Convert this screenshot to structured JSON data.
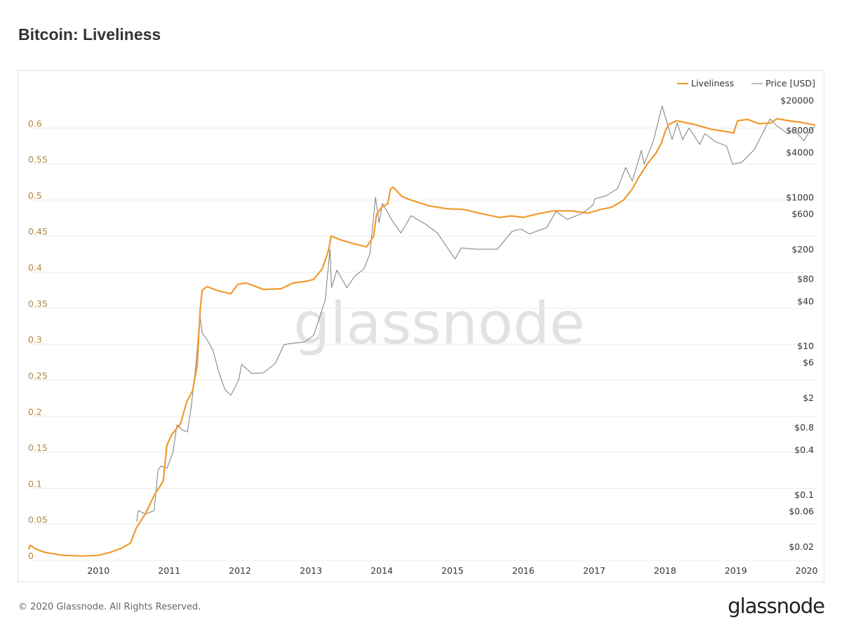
{
  "title": "Bitcoin: Liveliness",
  "footer": "© 2020 Glassnode. All Rights Reserved.",
  "logo": "glassnode",
  "watermark": "glassnode",
  "colors": {
    "liveliness": "#f09a2e",
    "price": "#7d7d7d",
    "left_axis": "#b5873f",
    "grid": "#ececec"
  },
  "chart_data": {
    "type": "line",
    "title": "Bitcoin: Liveliness",
    "legend": [
      "Liveliness",
      "Price [USD]"
    ],
    "legend_position": "top-right",
    "grid": true,
    "x_range": [
      "2009-01-03",
      "2020-02-15"
    ],
    "x_ticks": [
      "2010",
      "2011",
      "2012",
      "2013",
      "2014",
      "2015",
      "2016",
      "2017",
      "2018",
      "2019",
      "2020"
    ],
    "y_left": {
      "range": [
        0,
        0.65
      ],
      "scale": "linear",
      "ticks": [
        "0",
        "0.05",
        "0.1",
        "0.15",
        "0.2",
        "0.25",
        "0.3",
        "0.35",
        "0.4",
        "0.45",
        "0.5",
        "0.55",
        "0.6"
      ]
    },
    "y_right": {
      "range": [
        0.015,
        30000
      ],
      "scale": "log",
      "ticks": [
        "$0.02",
        "$0.06",
        "$0.1",
        "$0.4",
        "$0.8",
        "$2",
        "$6",
        "$10",
        "$40",
        "$80",
        "$200",
        "$600",
        "$1000",
        "$4000",
        "$8000",
        "$20000"
      ],
      "tick_values": [
        0.02,
        0.06,
        0.1,
        0.4,
        0.8,
        2,
        6,
        10,
        40,
        80,
        200,
        600,
        1000,
        4000,
        8000,
        20000
      ]
    },
    "series": [
      {
        "name": "Liveliness",
        "axis": "left",
        "points": [
          [
            "2009-01-05",
            0.015
          ],
          [
            "2009-01-15",
            0.021
          ],
          [
            "2009-02-10",
            0.016
          ],
          [
            "2009-04-01",
            0.011
          ],
          [
            "2009-07-01",
            0.007
          ],
          [
            "2009-10-01",
            0.006
          ],
          [
            "2010-01-01",
            0.007
          ],
          [
            "2010-03-01",
            0.011
          ],
          [
            "2010-05-01",
            0.017
          ],
          [
            "2010-06-15",
            0.024
          ],
          [
            "2010-07-15",
            0.045
          ],
          [
            "2010-09-01",
            0.065
          ],
          [
            "2010-10-15",
            0.09
          ],
          [
            "2010-12-01",
            0.11
          ],
          [
            "2010-12-20",
            0.16
          ],
          [
            "2011-01-15",
            0.175
          ],
          [
            "2011-03-01",
            0.19
          ],
          [
            "2011-04-01",
            0.22
          ],
          [
            "2011-05-01",
            0.235
          ],
          [
            "2011-05-25",
            0.27
          ],
          [
            "2011-06-10",
            0.35
          ],
          [
            "2011-06-20",
            0.375
          ],
          [
            "2011-07-15",
            0.38
          ],
          [
            "2011-09-01",
            0.375
          ],
          [
            "2011-10-15",
            0.372
          ],
          [
            "2011-11-15",
            0.37
          ],
          [
            "2011-12-20",
            0.383
          ],
          [
            "2012-02-01",
            0.385
          ],
          [
            "2012-05-01",
            0.376
          ],
          [
            "2012-08-01",
            0.377
          ],
          [
            "2012-10-01",
            0.385
          ],
          [
            "2012-12-01",
            0.387
          ],
          [
            "2013-01-15",
            0.39
          ],
          [
            "2013-03-01",
            0.405
          ],
          [
            "2013-04-01",
            0.43
          ],
          [
            "2013-04-15",
            0.45
          ],
          [
            "2013-06-01",
            0.445
          ],
          [
            "2013-08-01",
            0.44
          ],
          [
            "2013-10-15",
            0.435
          ],
          [
            "2013-11-20",
            0.45
          ],
          [
            "2013-12-05",
            0.48
          ],
          [
            "2014-01-01",
            0.49
          ],
          [
            "2014-02-01",
            0.495
          ],
          [
            "2014-02-15",
            0.515
          ],
          [
            "2014-03-01",
            0.518
          ],
          [
            "2014-04-15",
            0.505
          ],
          [
            "2014-06-01",
            0.5
          ],
          [
            "2014-09-01",
            0.492
          ],
          [
            "2014-12-01",
            0.488
          ],
          [
            "2015-03-01",
            0.487
          ],
          [
            "2015-06-01",
            0.481
          ],
          [
            "2015-09-01",
            0.476
          ],
          [
            "2015-11-01",
            0.478
          ],
          [
            "2016-01-01",
            0.476
          ],
          [
            "2016-03-01",
            0.48
          ],
          [
            "2016-06-01",
            0.485
          ],
          [
            "2016-09-01",
            0.485
          ],
          [
            "2016-12-01",
            0.482
          ],
          [
            "2017-02-01",
            0.487
          ],
          [
            "2017-04-01",
            0.49
          ],
          [
            "2017-06-01",
            0.5
          ],
          [
            "2017-07-15",
            0.515
          ],
          [
            "2017-08-15",
            0.53
          ],
          [
            "2017-10-01",
            0.55
          ],
          [
            "2017-11-15",
            0.565
          ],
          [
            "2017-12-15",
            0.58
          ],
          [
            "2018-01-01",
            0.595
          ],
          [
            "2018-01-20",
            0.605
          ],
          [
            "2018-03-01",
            0.61
          ],
          [
            "2018-06-01",
            0.605
          ],
          [
            "2018-09-01",
            0.598
          ],
          [
            "2018-11-15",
            0.595
          ],
          [
            "2018-12-20",
            0.593
          ],
          [
            "2019-01-10",
            0.61
          ],
          [
            "2019-03-01",
            0.612
          ],
          [
            "2019-05-01",
            0.606
          ],
          [
            "2019-07-01",
            0.607
          ],
          [
            "2019-08-01",
            0.613
          ],
          [
            "2019-10-01",
            0.61
          ],
          [
            "2019-12-01",
            0.608
          ],
          [
            "2020-02-15",
            0.604
          ]
        ]
      },
      {
        "name": "Price [USD]",
        "axis": "right",
        "points": [
          [
            "2010-07-17",
            0.05
          ],
          [
            "2010-07-25",
            0.07
          ],
          [
            "2010-09-01",
            0.063
          ],
          [
            "2010-10-15",
            0.07
          ],
          [
            "2010-11-05",
            0.25
          ],
          [
            "2010-11-20",
            0.28
          ],
          [
            "2010-12-20",
            0.26
          ],
          [
            "2011-01-20",
            0.42
          ],
          [
            "2011-02-10",
            1.0
          ],
          [
            "2011-03-10",
            0.85
          ],
          [
            "2011-04-05",
            0.8
          ],
          [
            "2011-04-25",
            1.8
          ],
          [
            "2011-05-20",
            7.0
          ],
          [
            "2011-06-08",
            30
          ],
          [
            "2011-06-20",
            17
          ],
          [
            "2011-07-15",
            14
          ],
          [
            "2011-08-15",
            10
          ],
          [
            "2011-09-15",
            5
          ],
          [
            "2011-10-15",
            3
          ],
          [
            "2011-11-15",
            2.5
          ],
          [
            "2011-12-25",
            4
          ],
          [
            "2012-01-10",
            6.5
          ],
          [
            "2012-03-01",
            4.9
          ],
          [
            "2012-05-01",
            5
          ],
          [
            "2012-07-01",
            6.7
          ],
          [
            "2012-08-15",
            12
          ],
          [
            "2012-10-01",
            12.5
          ],
          [
            "2012-12-01",
            13
          ],
          [
            "2013-01-15",
            16
          ],
          [
            "2013-02-15",
            28
          ],
          [
            "2013-03-15",
            47
          ],
          [
            "2013-04-09",
            230
          ],
          [
            "2013-04-17",
            70
          ],
          [
            "2013-05-15",
            120
          ],
          [
            "2013-07-05",
            70
          ],
          [
            "2013-08-15",
            100
          ],
          [
            "2013-10-01",
            125
          ],
          [
            "2013-11-01",
            200
          ],
          [
            "2013-11-30",
            1150
          ],
          [
            "2013-12-18",
            520
          ],
          [
            "2014-01-05",
            950
          ],
          [
            "2014-02-25",
            550
          ],
          [
            "2014-04-10",
            380
          ],
          [
            "2014-06-01",
            650
          ],
          [
            "2014-08-15",
            500
          ],
          [
            "2014-10-15",
            380
          ],
          [
            "2015-01-14",
            170
          ],
          [
            "2015-02-15",
            240
          ],
          [
            "2015-05-01",
            230
          ],
          [
            "2015-08-20",
            230
          ],
          [
            "2015-11-04",
            400
          ],
          [
            "2015-12-20",
            430
          ],
          [
            "2016-02-01",
            370
          ],
          [
            "2016-05-01",
            450
          ],
          [
            "2016-06-17",
            740
          ],
          [
            "2016-08-15",
            580
          ],
          [
            "2016-11-01",
            700
          ],
          [
            "2016-12-25",
            900
          ],
          [
            "2017-01-05",
            1100
          ],
          [
            "2017-03-01",
            1200
          ],
          [
            "2017-05-01",
            1500
          ],
          [
            "2017-06-12",
            2900
          ],
          [
            "2017-07-16",
            1900
          ],
          [
            "2017-09-01",
            4900
          ],
          [
            "2017-09-15",
            3200
          ],
          [
            "2017-11-01",
            6500
          ],
          [
            "2017-12-17",
            19500
          ],
          [
            "2018-02-06",
            6900
          ],
          [
            "2018-03-05",
            11500
          ],
          [
            "2018-04-01",
            6900
          ],
          [
            "2018-05-05",
            9800
          ],
          [
            "2018-06-29",
            5900
          ],
          [
            "2018-07-25",
            8300
          ],
          [
            "2018-09-15",
            6500
          ],
          [
            "2018-11-15",
            5600
          ],
          [
            "2018-12-15",
            3200
          ],
          [
            "2019-02-01",
            3400
          ],
          [
            "2019-04-05",
            5000
          ],
          [
            "2019-06-26",
            13000
          ],
          [
            "2019-08-01",
            10500
          ],
          [
            "2019-09-25",
            8300
          ],
          [
            "2019-10-26",
            9500
          ],
          [
            "2019-12-18",
            6600
          ],
          [
            "2020-01-15",
            8800
          ],
          [
            "2020-02-13",
            10300
          ]
        ]
      }
    ]
  }
}
